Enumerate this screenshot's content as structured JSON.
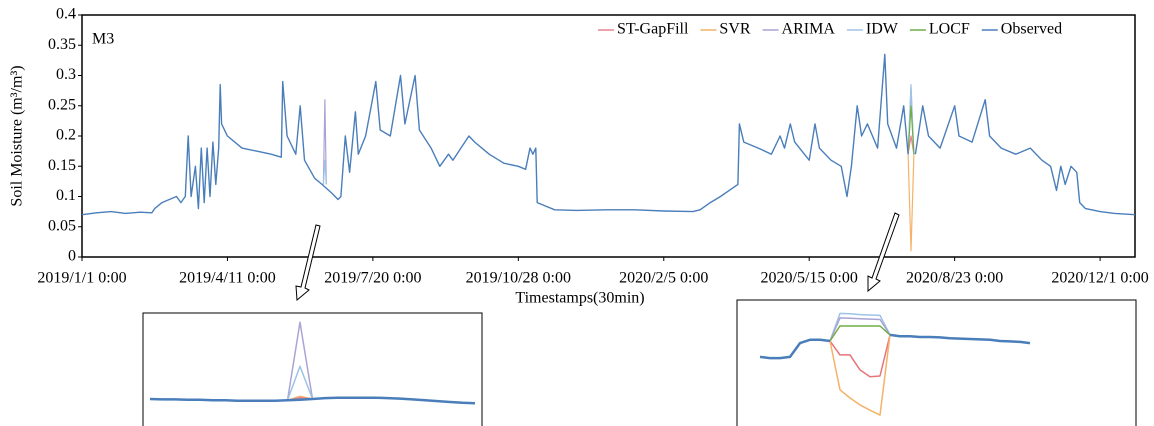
{
  "chart_data": [
    {
      "type": "line",
      "annotation": "M3",
      "x_label": "Timestamps(30min)",
      "y_label": "Soil Moisture (m³/m³)",
      "xlim": [
        "2019/1/1 0:00",
        "2020/12/25 0:00"
      ],
      "xticks": [
        "2019/1/1 0:00",
        "2019/4/11 0:00",
        "2019/7/20 0:00",
        "2019/10/28 0:00",
        "2020/2/5 0:00",
        "2020/5/15 0:00",
        "2020/8/23 0:00",
        "2020/12/1 0:00"
      ],
      "ylim": [
        0,
        0.4
      ],
      "yticks": [
        0,
        0.05,
        0.1,
        0.15,
        0.2,
        0.25,
        0.3,
        0.35,
        0.4
      ],
      "legend": "top-right",
      "series": [
        {
          "name": "ST-GapFill",
          "color": "#e8838f",
          "x": [
            "2020/7/22 0:00",
            "2020/7/24 0:00",
            "2020/7/26 0:00"
          ],
          "values": [
            0.17,
            0.2,
            0.17
          ]
        },
        {
          "name": "SVR",
          "color": "#f4b26a",
          "x": [
            "2020/7/22 0:00",
            "2020/7/24 0:00",
            "2020/7/26 0:00"
          ],
          "values": [
            0.17,
            0.01,
            0.17
          ]
        },
        {
          "name": "ARIMA",
          "color": "#a9a4d4",
          "x": [
            "2019/6/16 0:00",
            "2019/6/17 0:00",
            "2019/6/18 0:00",
            "2019/12/7 0:00",
            "2020/7/22 0:00",
            "2020/7/24 0:00",
            "2020/7/26 0:00"
          ],
          "values": [
            0.12,
            0.26,
            0.12,
            null,
            0.17,
            0.28,
            0.17
          ]
        },
        {
          "name": "IDW",
          "color": "#9dc3e6",
          "x": [
            "2019/6/16 0:00",
            "2019/6/17 0:00",
            "2019/6/18 0:00",
            "2019/12/7 0:00",
            "2020/7/22 0:00",
            "2020/7/24 0:00",
            "2020/7/26 0:00"
          ],
          "values": [
            0.12,
            0.16,
            0.12,
            null,
            0.17,
            0.285,
            0.17
          ]
        },
        {
          "name": "LOCF",
          "color": "#70ad47",
          "x": [
            "2020/7/22 0:00",
            "2020/7/24 0:00",
            "2020/7/26 0:00"
          ],
          "values": [
            0.17,
            0.25,
            0.17
          ]
        },
        {
          "name": "Observed",
          "color": "#4a7ebb",
          "x": [
            "2019/1/1 0:00",
            "2019/1/11 0:00",
            "2019/1/21 0:00",
            "2019/1/31 0:00",
            "2019/2/10 0:00",
            "2019/2/18 0:00",
            "2019/2/20 0:00",
            "2019/2/25 0:00",
            "2019/3/2 0:00",
            "2019/3/7 0:00",
            "2019/3/10 0:00",
            "2019/3/13 0:00",
            "2019/3/15 0:00",
            "2019/3/17 0:00",
            "2019/3/20 0:00",
            "2019/3/22 0:00",
            "2019/3/24 0:00",
            "2019/3/26 0:00",
            "2019/3/28 0:00",
            "2019/3/30 0:00",
            "2019/4/1 0:00",
            "2019/4/3 0:00",
            "2019/4/5 0:00",
            "2019/4/6 0:00",
            "2019/4/7 0:00",
            "2019/4/11 0:00",
            "2019/4/21 0:00",
            "2019/5/1 0:00",
            "2019/5/11 0:00",
            "2019/5/18 0:00",
            "2019/5/19 0:00",
            "2019/5/22 0:00",
            "2019/5/28 0:00",
            "2019/5/31 0:00",
            "2019/6/3 0:00",
            "2019/6/10 0:00",
            "2019/6/15 0:00",
            "2019/6/22 0:00",
            "2019/6/26 0:00",
            "2019/6/28 0:00",
            "2019/7/1 0:00",
            "2019/7/4 0:00",
            "2019/7/8 0:00",
            "2019/7/10 0:00",
            "2019/7/15 0:00",
            "2019/7/22 0:00",
            "2019/7/25 0:00",
            "2019/8/1 0:00",
            "2019/8/8 0:00",
            "2019/8/11 0:00",
            "2019/8/18 0:00",
            "2019/8/21 0:00",
            "2019/8/29 0:00",
            "2019/9/4 0:00",
            "2019/9/10 0:00",
            "2019/9/13 0:00",
            "2019/9/24 0:00",
            "2019/9/28 0:00",
            "2019/10/8 0:00",
            "2019/10/18 0:00",
            "2019/10/28 0:00",
            "2019/11/2 0:00",
            "2019/11/5 0:00",
            "2019/11/7 0:00",
            "2019/11/9 0:00",
            "2019/11/10 0:00",
            "2019/11/15 0:00",
            "2019/11/22 0:00",
            "2019/12/7 0:00",
            "2019/12/27 0:00",
            "2020/1/16 0:00",
            "2020/2/5 0:00",
            "2020/2/25 0:00",
            "2020/3/1 0:00",
            "2020/3/8 0:00",
            "2020/3/15 0:00",
            "2020/3/21 0:00",
            "2020/3/27 0:00",
            "2020/3/28 0:00",
            "2020/3/31 0:00",
            "2020/4/10 0:00",
            "2020/4/19 0:00",
            "2020/4/25 0:00",
            "2020/4/28 0:00",
            "2020/5/2 0:00",
            "2020/5/5 0:00",
            "2020/5/15 0:00",
            "2020/5/19 0:00",
            "2020/5/22 0:00",
            "2020/5/30 0:00",
            "2020/6/6 0:00",
            "2020/6/10 0:00",
            "2020/6/13 0:00",
            "2020/6/17 0:00",
            "2020/6/20 0:00",
            "2020/6/24 0:00",
            "2020/7/1 0:00",
            "2020/7/6 0:00",
            "2020/7/8 0:00",
            "2020/7/14 0:00",
            "2020/7/19 0:00",
            "2020/7/22 0:00",
            "2020/7/24 0:00",
            "2020/7/27 0:00",
            "2020/8/1 0:00",
            "2020/8/5 0:00",
            "2020/8/13 0:00",
            "2020/8/23 0:00",
            "2020/8/26 0:00",
            "2020/9/4 0:00",
            "2020/9/13 0:00",
            "2020/9/16 0:00",
            "2020/9/24 0:00",
            "2020/10/4 0:00",
            "2020/10/14 0:00",
            "2020/10/22 0:00",
            "2020/10/28 0:00",
            "2020/11/1 0:00",
            "2020/11/4 0:00",
            "2020/11/7 0:00",
            "2020/11/11 0:00",
            "2020/11/15 0:00",
            "2020/11/17 0:00",
            "2020/11/21 0:00",
            "2020/12/1 0:00",
            "2020/12/11 0:00",
            "2020/12/25 0:00"
          ],
          "values": [
            0.07,
            0.073,
            0.075,
            0.072,
            0.074,
            0.073,
            0.08,
            0.09,
            0.095,
            0.1,
            0.09,
            0.1,
            0.2,
            0.1,
            0.15,
            0.08,
            0.18,
            0.09,
            0.18,
            0.1,
            0.19,
            0.12,
            0.18,
            0.285,
            0.22,
            0.2,
            0.18,
            0.175,
            0.17,
            0.165,
            0.29,
            0.2,
            0.17,
            0.25,
            0.16,
            0.13,
            0.12,
            0.105,
            0.095,
            0.1,
            0.2,
            0.14,
            0.24,
            0.17,
            0.2,
            0.29,
            0.21,
            0.2,
            0.3,
            0.22,
            0.3,
            0.21,
            0.18,
            0.15,
            0.17,
            0.16,
            0.2,
            0.19,
            0.17,
            0.155,
            0.15,
            0.145,
            0.18,
            0.17,
            0.18,
            0.09,
            0.085,
            0.078,
            0.077,
            0.078,
            0.078,
            0.076,
            0.075,
            0.078,
            0.09,
            0.1,
            0.11,
            0.12,
            0.22,
            0.19,
            0.18,
            0.17,
            0.2,
            0.18,
            0.22,
            0.19,
            0.16,
            0.22,
            0.18,
            0.16,
            0.15,
            0.1,
            0.15,
            0.25,
            0.2,
            0.22,
            0.18,
            0.335,
            0.22,
            0.18,
            0.25,
            0.17,
            null,
            0.17,
            0.25,
            0.2,
            0.18,
            0.25,
            0.2,
            0.19,
            0.26,
            0.2,
            0.18,
            0.17,
            0.18,
            0.16,
            0.15,
            0.11,
            0.15,
            0.12,
            0.15,
            0.14,
            0.09,
            0.08,
            0.075,
            0.072,
            0.07
          ]
        }
      ]
    },
    {
      "type": "line",
      "categories": [
        null,
        null,
        null,
        null,
        null,
        null,
        null,
        null,
        null,
        null,
        null,
        null,
        null,
        null,
        null,
        null,
        null,
        null,
        null,
        null,
        null,
        null,
        null,
        null,
        null,
        null,
        null
      ],
      "ylim": [
        0.02,
        0.27
      ],
      "series": [
        {
          "color": "#a9a4d4",
          "values": [
            null,
            null,
            null,
            null,
            null,
            null,
            null,
            null,
            null,
            null,
            null,
            0.076,
            0.26,
            0.079,
            null,
            null,
            null,
            null,
            null,
            null,
            null,
            null,
            null,
            null,
            null,
            null,
            null
          ]
        },
        {
          "color": "#9dc3e6",
          "values": [
            null,
            null,
            null,
            null,
            null,
            null,
            null,
            null,
            null,
            null,
            null,
            0.076,
            0.156,
            0.079,
            null,
            null,
            null,
            null,
            null,
            null,
            null,
            null,
            null,
            null,
            null,
            null,
            null
          ]
        },
        {
          "color": "#f4b26a",
          "values": [
            null,
            null,
            null,
            null,
            null,
            null,
            null,
            null,
            null,
            null,
            null,
            0.076,
            0.085,
            0.079,
            null,
            null,
            null,
            null,
            null,
            null,
            null,
            null,
            null,
            null,
            null,
            null,
            null
          ]
        },
        {
          "color": "#e8838f",
          "values": [
            null,
            null,
            null,
            null,
            null,
            null,
            null,
            null,
            null,
            null,
            null,
            0.076,
            0.082,
            0.079,
            null,
            null,
            null,
            null,
            null,
            null,
            null,
            null,
            null,
            null,
            null,
            null,
            null
          ]
        },
        {
          "color": "#70ad47",
          "values": [
            null,
            null,
            null,
            null,
            null,
            null,
            null,
            null,
            null,
            null,
            null,
            0.076,
            0.078,
            0.08,
            null,
            null,
            null,
            null,
            null,
            null,
            null,
            null,
            null,
            null,
            null,
            null,
            null
          ]
        },
        {
          "color": "#4a7ebb",
          "values": [
            0.079,
            0.078,
            0.078,
            0.077,
            0.077,
            0.076,
            0.076,
            0.075,
            0.075,
            0.075,
            0.075,
            0.076,
            0.077,
            0.079,
            0.081,
            0.082,
            0.082,
            0.082,
            0.082,
            0.081,
            0.08,
            0.078,
            0.076,
            0.074,
            0.072,
            0.07,
            0.069
          ]
        }
      ]
    },
    {
      "type": "line",
      "categories": [
        null,
        null,
        null,
        null,
        null,
        null,
        null,
        null,
        null,
        null,
        null,
        null,
        null,
        null,
        null,
        null,
        null,
        null,
        null,
        null,
        null,
        null,
        null,
        null,
        null,
        null,
        null,
        null
      ],
      "ylim": [
        0,
        0.3
      ],
      "series": [
        {
          "color": "#9dc3e6",
          "values": [
            null,
            null,
            null,
            null,
            null,
            null,
            null,
            0.204,
            0.272,
            0.271,
            0.269,
            0.268,
            0.267,
            0.219,
            null,
            null,
            null,
            null,
            null,
            null,
            null,
            null,
            null,
            null,
            null,
            null,
            null,
            null
          ]
        },
        {
          "color": "#a9a4d4",
          "values": [
            null,
            null,
            null,
            null,
            null,
            null,
            null,
            0.204,
            0.261,
            0.26,
            0.259,
            0.258,
            0.257,
            0.219,
            null,
            null,
            null,
            null,
            null,
            null,
            null,
            null,
            null,
            null,
            null,
            null,
            null,
            null
          ]
        },
        {
          "color": "#70ad47",
          "values": [
            null,
            null,
            null,
            null,
            null,
            null,
            null,
            0.204,
            0.241,
            0.241,
            0.241,
            0.241,
            0.241,
            0.219,
            null,
            null,
            null,
            null,
            null,
            null,
            null,
            null,
            null,
            null,
            null,
            null,
            null,
            null
          ]
        },
        {
          "color": "#e8747c",
          "values": [
            null,
            null,
            null,
            null,
            null,
            null,
            null,
            0.204,
            0.17,
            0.17,
            0.133,
            0.116,
            0.118,
            0.219,
            null,
            null,
            null,
            null,
            null,
            null,
            null,
            null,
            null,
            null,
            null,
            null,
            null,
            null
          ]
        },
        {
          "color": "#f4b26a",
          "values": [
            null,
            null,
            null,
            null,
            null,
            null,
            null,
            0.204,
            0.084,
            0.064,
            0.047,
            0.034,
            0.022,
            0.219,
            null,
            null,
            null,
            null,
            null,
            null,
            null,
            null,
            null,
            null,
            null,
            null,
            null,
            null
          ]
        },
        {
          "color": "#4a7ebb",
          "values": [
            0.165,
            0.162,
            0.162,
            0.165,
            0.199,
            0.207,
            0.207,
            0.204,
            null,
            null,
            null,
            null,
            null,
            0.219,
            0.216,
            0.216,
            0.214,
            0.214,
            0.213,
            0.211,
            0.21,
            0.209,
            0.208,
            0.207,
            0.204,
            0.203,
            0.202,
            0.199
          ]
        }
      ]
    }
  ]
}
